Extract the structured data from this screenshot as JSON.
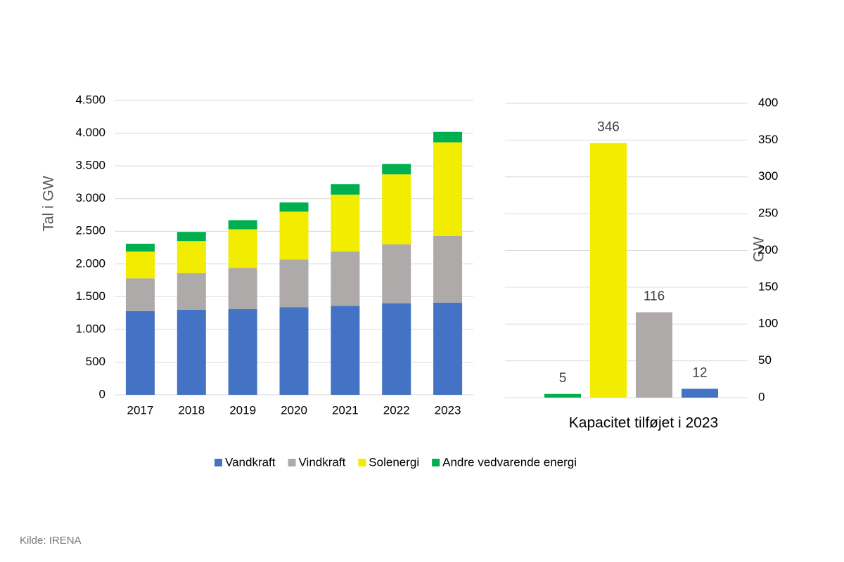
{
  "chart_data": [
    {
      "type": "stacked_bar",
      "ylabel": "Tal i GW",
      "categories": [
        "2017",
        "2018",
        "2019",
        "2020",
        "2021",
        "2022",
        "2023"
      ],
      "series": [
        {
          "name": "Vandkraft",
          "color": "#4472c4",
          "values": [
            1280,
            1300,
            1310,
            1340,
            1360,
            1400,
            1410
          ]
        },
        {
          "name": "Vindkraft",
          "color": "#aeaaaa",
          "values": [
            500,
            560,
            630,
            730,
            830,
            900,
            1020
          ]
        },
        {
          "name": "Solenergi",
          "color": "#f2ec00",
          "values": [
            410,
            490,
            590,
            730,
            870,
            1070,
            1430
          ]
        },
        {
          "name": "Andre vedvarende energi",
          "color": "#00b050",
          "values": [
            120,
            140,
            140,
            140,
            160,
            160,
            160
          ]
        }
      ],
      "ylim": [
        0,
        4500
      ],
      "yticks": [
        0,
        500,
        {
          "value": 1000,
          "label": "1.000"
        },
        {
          "value": 1500,
          "label": "1.500"
        },
        {
          "value": 2000,
          "label": "2.000"
        },
        {
          "value": 2500,
          "label": "2.500"
        },
        {
          "value": 3000,
          "label": "3.000"
        },
        {
          "value": 3500,
          "label": "3.500"
        },
        {
          "value": 4000,
          "label": "4.000"
        },
        {
          "value": 4500,
          "label": "4.500"
        }
      ],
      "grid": true,
      "legend": "bottom"
    },
    {
      "type": "bar",
      "xlabel": "Kapacitet tilføjet i 2023",
      "ylabel": "GW",
      "categories": [
        null,
        null,
        null,
        null
      ],
      "values": [
        5,
        346,
        116,
        12
      ],
      "colors": [
        "#00b050",
        "#f2ec00",
        "#aeaaaa",
        "#4472c4"
      ],
      "ylim": [
        0,
        400
      ],
      "yticks": [
        0,
        50,
        100,
        150,
        200,
        250,
        300,
        350,
        400
      ],
      "grid": true,
      "yaxis_side": "right"
    }
  ],
  "source": "Kilde: IRENA"
}
